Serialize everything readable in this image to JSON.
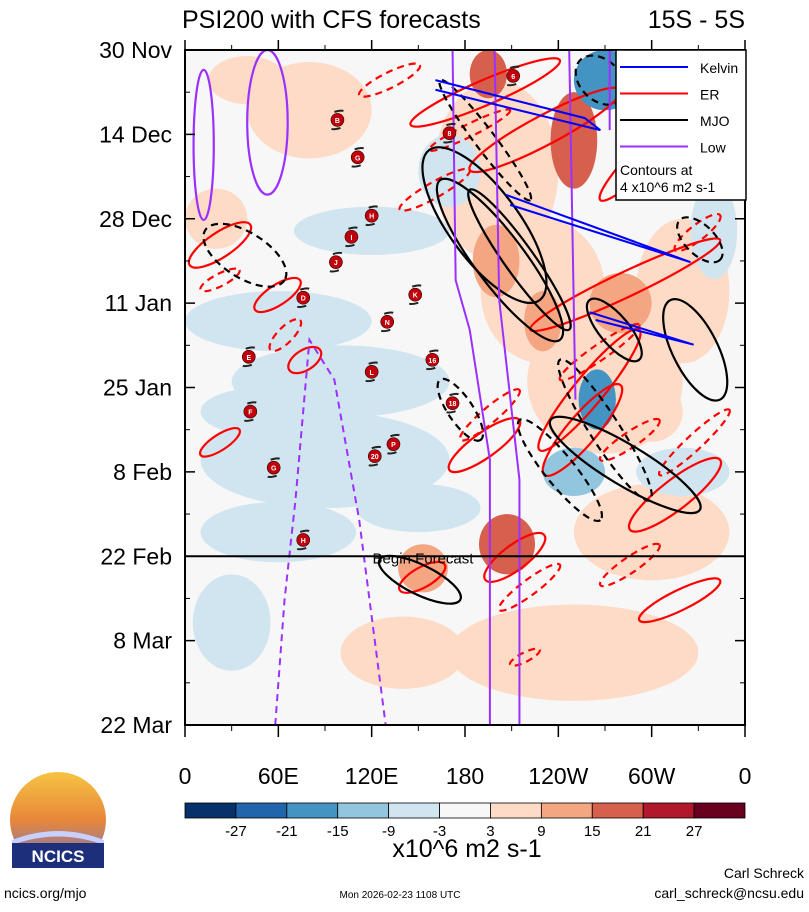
{
  "chart_data": {
    "type": "heatmap",
    "title": "PSI200 with CFS forecasts",
    "subtitle": "15S - 5S",
    "xlabel": "",
    "ylabel": "",
    "xlim": [
      0,
      360
    ],
    "ylim_days": [
      0,
      112
    ],
    "x_ticks": [
      {
        "lon": 0,
        "label": "0"
      },
      {
        "lon": 60,
        "label": "60E"
      },
      {
        "lon": 120,
        "label": "120E"
      },
      {
        "lon": 180,
        "label": "180"
      },
      {
        "lon": 240,
        "label": "120W"
      },
      {
        "lon": 300,
        "label": "60W"
      },
      {
        "lon": 360,
        "label": "0"
      }
    ],
    "y_ticks": [
      {
        "day": 0,
        "label": "30 Nov"
      },
      {
        "day": 14,
        "label": "14 Dec"
      },
      {
        "day": 28,
        "label": "28 Dec"
      },
      {
        "day": 42,
        "label": "11 Jan"
      },
      {
        "day": 56,
        "label": "25 Jan"
      },
      {
        "day": 70,
        "label": "8 Feb"
      },
      {
        "day": 84,
        "label": "22 Feb"
      },
      {
        "day": 98,
        "label": "8 Mar"
      },
      {
        "day": 112,
        "label": "22 Mar"
      }
    ],
    "forecast_start_day": 84,
    "forecast_label": "Begin Forecast",
    "colorbar": {
      "levels": [
        -27,
        -21,
        -15,
        -9,
        -3,
        3,
        9,
        15,
        21,
        27
      ],
      "colors": [
        "#08306b",
        "#2166ac",
        "#4393c3",
        "#92c5de",
        "#d1e5f0",
        "#f7f7f7",
        "#fddbc7",
        "#f4a582",
        "#d6604d",
        "#b2182b",
        "#67001f"
      ],
      "units": "x10^6 m2 s-1"
    },
    "legend": {
      "items": [
        {
          "label": "Kelvin",
          "color": "#0000ff"
        },
        {
          "label": "ER",
          "color": "#ff0000"
        },
        {
          "label": "MJO",
          "color": "#000000"
        },
        {
          "label": "Low",
          "color": "#9b30ff"
        }
      ],
      "note_line1": "Contours at",
      "note_line2": "4 x10^6 m2 s-1",
      "placement": "top-right"
    },
    "shading_blobs": [
      [
        80,
        10,
        40,
        8,
        4
      ],
      [
        40,
        5,
        25,
        4,
        6
      ],
      [
        20,
        28,
        20,
        5,
        5
      ],
      [
        120,
        30,
        50,
        4,
        -4
      ],
      [
        60,
        45,
        60,
        5,
        -5
      ],
      [
        100,
        55,
        70,
        6,
        -6
      ],
      [
        90,
        68,
        80,
        8,
        -5
      ],
      [
        60,
        80,
        50,
        5,
        -4
      ],
      [
        150,
        76,
        40,
        4,
        -5
      ],
      [
        30,
        95,
        25,
        8,
        -4
      ],
      [
        140,
        100,
        40,
        6,
        4
      ],
      [
        250,
        100,
        80,
        8,
        5
      ],
      [
        300,
        80,
        50,
        8,
        5
      ],
      [
        320,
        40,
        30,
        12,
        6
      ],
      [
        200,
        20,
        40,
        15,
        6
      ],
      [
        230,
        40,
        40,
        12,
        7
      ],
      [
        270,
        55,
        50,
        12,
        6
      ],
      [
        195,
        4,
        12,
        4,
        18
      ],
      [
        250,
        15,
        15,
        8,
        16
      ],
      [
        200,
        35,
        15,
        6,
        14
      ],
      [
        230,
        45,
        12,
        5,
        12
      ],
      [
        280,
        42,
        20,
        5,
        10
      ],
      [
        270,
        5,
        20,
        5,
        -18
      ],
      [
        265,
        58,
        12,
        5,
        -20
      ],
      [
        250,
        70,
        20,
        4,
        -10
      ],
      [
        207,
        82,
        18,
        5,
        20
      ],
      [
        153,
        86,
        16,
        4,
        14
      ],
      [
        300,
        60,
        20,
        5,
        8
      ],
      [
        170,
        20,
        20,
        6,
        -6
      ],
      [
        340,
        30,
        15,
        8,
        -6
      ],
      [
        50,
        60,
        40,
        4,
        -8
      ],
      [
        320,
        70,
        30,
        4,
        -6
      ]
    ],
    "contours": [
      {
        "kind": "ER",
        "dashed": false,
        "from": [
          145,
          12.4
        ],
        "to": [
          241,
          1.7
        ],
        "width": 16
      },
      {
        "kind": "ER",
        "dashed": false,
        "from": [
          183,
          19.9
        ],
        "to": [
          280,
          6.6
        ],
        "width": 19
      },
      {
        "kind": "ER",
        "dashed": false,
        "from": [
          3,
          35.7
        ],
        "to": [
          42,
          29
        ],
        "width": 16
      },
      {
        "kind": "ER",
        "dashed": false,
        "from": [
          45,
          43.1
        ],
        "to": [
          74,
          38.2
        ],
        "width": 13
      },
      {
        "kind": "ER",
        "dashed": false,
        "from": [
          10,
          67.2
        ],
        "to": [
          35,
          63
        ],
        "width": 10
      },
      {
        "kind": "ER",
        "dashed": false,
        "from": [
          67,
          53.1
        ],
        "to": [
          87,
          49.8
        ],
        "width": 13
      },
      {
        "kind": "ER",
        "dashed": false,
        "from": [
          193,
          87.9
        ],
        "to": [
          231,
          80.5
        ],
        "width": 16
      },
      {
        "kind": "ER",
        "dashed": false,
        "from": [
          138,
          89.6
        ],
        "to": [
          167,
          85.4
        ],
        "width": 13
      },
      {
        "kind": "ER",
        "dashed": false,
        "from": [
          170,
          69.7
        ],
        "to": [
          215,
          61.4
        ],
        "width": 16
      },
      {
        "kind": "ER",
        "dashed": false,
        "from": [
          231,
          70.5
        ],
        "to": [
          280,
          55.6
        ],
        "width": 19
      },
      {
        "kind": "ER",
        "dashed": false,
        "from": [
          228,
          66.4
        ],
        "to": [
          292,
          46.4
        ],
        "width": 19
      },
      {
        "kind": "ER",
        "dashed": false,
        "from": [
          286,
          79.6
        ],
        "to": [
          344,
          68
        ],
        "width": 19
      },
      {
        "kind": "ER",
        "dashed": false,
        "from": [
          292,
          94.6
        ],
        "to": [
          344,
          88
        ],
        "width": 13
      },
      {
        "kind": "ER",
        "dashed": false,
        "from": [
          222,
          46.4
        ],
        "to": [
          344,
          31.5
        ],
        "width": 16
      },
      {
        "kind": "ER",
        "dashed": false,
        "from": [
          267,
          24.9
        ],
        "to": [
          331,
          8.3
        ],
        "width": 16
      },
      {
        "kind": "ER",
        "dashed": true,
        "from": [
          138,
          26.5
        ],
        "to": [
          183,
          19.9
        ],
        "width": 10
      },
      {
        "kind": "ER",
        "dashed": true,
        "from": [
          112,
          7.5
        ],
        "to": [
          151,
          2.5
        ],
        "width": 10
      },
      {
        "kind": "ER",
        "dashed": true,
        "from": [
          177,
          64.7
        ],
        "to": [
          215,
          56.4
        ],
        "width": 10
      },
      {
        "kind": "ER",
        "dashed": true,
        "from": [
          55,
          49.8
        ],
        "to": [
          74,
          44.8
        ],
        "width": 10
      },
      {
        "kind": "ER",
        "dashed": true,
        "from": [
          10,
          39.8
        ],
        "to": [
          35,
          36.5
        ],
        "width": 8
      },
      {
        "kind": "ER",
        "dashed": true,
        "from": [
          202,
          92.9
        ],
        "to": [
          241,
          85.4
        ],
        "width": 10
      },
      {
        "kind": "ER",
        "dashed": true,
        "from": [
          209,
          102
        ],
        "to": [
          228,
          99.5
        ],
        "width": 6
      },
      {
        "kind": "ER",
        "dashed": true,
        "from": [
          267,
          88.8
        ],
        "to": [
          305,
          82.1
        ],
        "width": 10
      },
      {
        "kind": "ER",
        "dashed": true,
        "from": [
          305,
          70.5
        ],
        "to": [
          350,
          59.7
        ],
        "width": 10
      },
      {
        "kind": "ER",
        "dashed": true,
        "from": [
          315,
          33.2
        ],
        "to": [
          344,
          27.4
        ],
        "width": 10
      },
      {
        "kind": "ER",
        "dashed": true,
        "from": [
          241,
          54.7
        ],
        "to": [
          292,
          45.6
        ],
        "width": 10
      },
      {
        "kind": "ER",
        "dashed": true,
        "from": [
          157,
          16.6
        ],
        "to": [
          209,
          10
        ],
        "width": 8
      },
      {
        "kind": "ER",
        "dashed": true,
        "from": [
          267,
          68
        ],
        "to": [
          305,
          61.4
        ],
        "width": 10
      },
      {
        "kind": "MJO",
        "dashed": false,
        "from": [
          164,
          21.6
        ],
        "to": [
          241,
          48.1
        ],
        "width": 32
      },
      {
        "kind": "MJO",
        "dashed": false,
        "from": [
          183,
          23.2
        ],
        "to": [
          247,
          46.4
        ],
        "width": 19
      },
      {
        "kind": "MJO",
        "dashed": false,
        "from": [
          157,
          16.6
        ],
        "to": [
          228,
          41.5
        ],
        "width": 45
      },
      {
        "kind": "MJO",
        "dashed": false,
        "from": [
          260,
          41.5
        ],
        "to": [
          292,
          51.4
        ],
        "width": 19
      },
      {
        "kind": "MJO",
        "dashed": false,
        "from": [
          312,
          41.5
        ],
        "to": [
          344,
          58
        ],
        "width": 29
      },
      {
        "kind": "MJO",
        "dashed": false,
        "from": [
          235,
          61.4
        ],
        "to": [
          331,
          76.3
        ],
        "width": 26
      },
      {
        "kind": "MJO",
        "dashed": false,
        "from": [
          125,
          84.6
        ],
        "to": [
          177,
          91.2
        ],
        "width": 19
      },
      {
        "kind": "MJO",
        "dashed": true,
        "from": [
          13,
          29.9
        ],
        "to": [
          64,
          38.2
        ],
        "width": 29
      },
      {
        "kind": "MJO",
        "dashed": true,
        "from": [
          164,
          5
        ],
        "to": [
          222,
          24.9
        ],
        "width": 13
      },
      {
        "kind": "MJO",
        "dashed": true,
        "from": [
          254,
          1.7
        ],
        "to": [
          280,
          8.3
        ],
        "width": 26
      },
      {
        "kind": "MJO",
        "dashed": true,
        "from": [
          164,
          54.7
        ],
        "to": [
          190,
          64.7
        ],
        "width": 16
      },
      {
        "kind": "MJO",
        "dashed": true,
        "from": [
          215,
          61.4
        ],
        "to": [
          267,
          78
        ],
        "width": 19
      },
      {
        "kind": "MJO",
        "dashed": true,
        "from": [
          241,
          51.4
        ],
        "to": [
          299,
          74.7
        ],
        "width": 19
      },
      {
        "kind": "MJO",
        "dashed": true,
        "from": [
          318,
          28.2
        ],
        "to": [
          344,
          34.8
        ],
        "width": 19
      },
      {
        "kind": "Low",
        "dashed": false,
        "from": [
          12,
          3.3
        ],
        "to": [
          12,
          28.2
        ],
        "width": 13
      },
      {
        "kind": "Low",
        "dashed": false,
        "from": [
          53,
          0
        ],
        "to": [
          53,
          24
        ],
        "width": 26
      }
    ],
    "lines": [
      {
        "kind": "Low",
        "dashed": false,
        "points": [
          [
            172,
            0
          ],
          [
            174,
            38.2
          ],
          [
            183,
            46.4
          ],
          [
            196,
            68
          ],
          [
            196,
            112
          ]
        ]
      },
      {
        "kind": "Low",
        "dashed": false,
        "points": [
          [
            199,
            0
          ],
          [
            202,
            41.5
          ],
          [
            215,
            71.3
          ],
          [
            215,
            112
          ]
        ]
      },
      {
        "kind": "Low",
        "dashed": false,
        "points": [
          [
            247,
            0
          ],
          [
            251,
            58
          ]
        ]
      },
      {
        "kind": "Low",
        "dashed": false,
        "points": [
          [
            273,
            0
          ],
          [
            273,
            13.3
          ]
        ]
      },
      {
        "kind": "Low",
        "dashed": true,
        "points": [
          [
            58,
            112
          ],
          [
            64,
            91.2
          ],
          [
            71,
            74.7
          ],
          [
            80,
            48.1
          ],
          [
            96,
            54.7
          ],
          [
            112,
            78
          ],
          [
            129,
            112
          ]
        ]
      },
      {
        "kind": "Kelvin",
        "dashed": false,
        "points": [
          [
            161,
            5
          ],
          [
            257,
            11.3
          ],
          [
            267,
            13.3
          ],
          [
            161,
            6.6
          ]
        ]
      },
      {
        "kind": "Kelvin",
        "dashed": false,
        "points": [
          [
            206,
            24
          ],
          [
            325,
            35.2
          ],
          [
            209,
            25.7
          ]
        ]
      },
      {
        "kind": "Kelvin",
        "dashed": false,
        "points": [
          [
            260,
            43.5
          ],
          [
            327,
            48.9
          ],
          [
            264,
            44.8
          ]
        ]
      }
    ],
    "storms": [
      {
        "name": "B",
        "lon": 98,
        "day": 11.6
      },
      {
        "name": "G",
        "lon": 111,
        "day": 17.8
      },
      {
        "name": "H",
        "lon": 120,
        "day": 27.5
      },
      {
        "name": "I",
        "lon": 107,
        "day": 31
      },
      {
        "name": "J",
        "lon": 97,
        "day": 35.2
      },
      {
        "name": "D",
        "lon": 76,
        "day": 41.1
      },
      {
        "name": "K",
        "lon": 148,
        "day": 40.6
      },
      {
        "name": "N",
        "lon": 130,
        "day": 45.1
      },
      {
        "name": "E",
        "lon": 41,
        "day": 50.9
      },
      {
        "name": "L",
        "lon": 120,
        "day": 53.4
      },
      {
        "name": "F",
        "lon": 42,
        "day": 60
      },
      {
        "name": "P",
        "lon": 134,
        "day": 65.4
      },
      {
        "name": "20",
        "lon": 122,
        "day": 67.4
      },
      {
        "name": "G",
        "lon": 57,
        "day": 69.3
      },
      {
        "name": "H",
        "lon": 76,
        "day": 81.3
      },
      {
        "name": "16",
        "lon": 159,
        "day": 51.4
      },
      {
        "name": "18",
        "lon": 172,
        "day": 58.6
      },
      {
        "name": "8",
        "lon": 170,
        "day": 13.8
      },
      {
        "name": "6",
        "lon": 211,
        "day": 4.3
      }
    ]
  },
  "logo": {
    "text": "NCICS"
  },
  "footer": {
    "url": "ncics.org/mjo",
    "timestamp": "Mon 2026-02-23 1108 UTC",
    "author": "Carl Schreck",
    "email": "carl_schreck@ncsu.edu"
  }
}
